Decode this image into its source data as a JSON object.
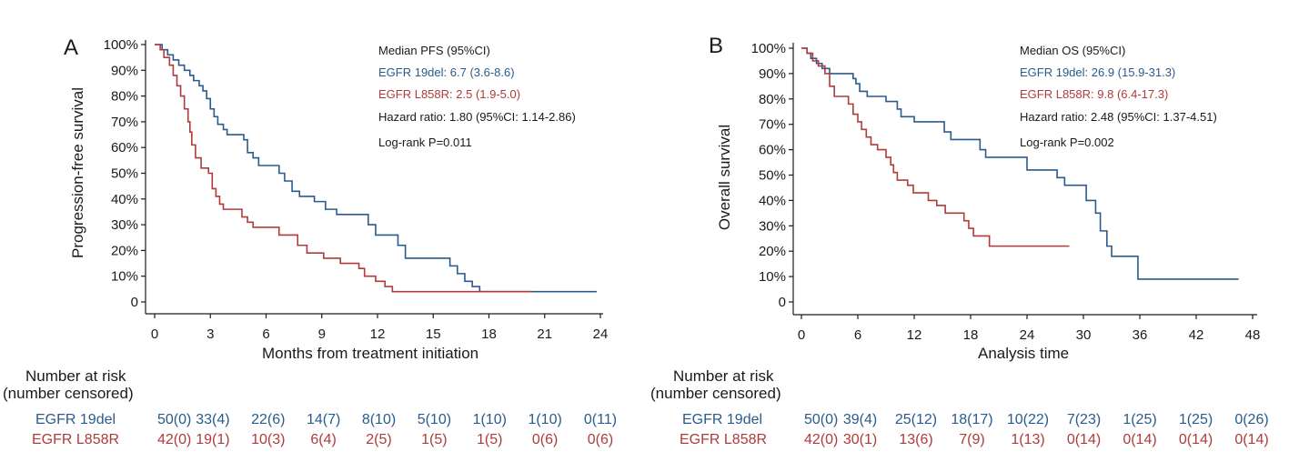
{
  "colors": {
    "egfr19del": "#2a5b8c",
    "l858r": "#b03b3b",
    "text": "#1a1a1a"
  },
  "chart_data": [
    {
      "panel": "A",
      "type": "line",
      "subtype": "kaplan-meier",
      "xlabel": "Months from treatment initiation",
      "ylabel": "Progression-free survival",
      "xlim": [
        0,
        24
      ],
      "ylim": [
        0,
        100
      ],
      "xticks": [
        0,
        3,
        6,
        9,
        12,
        15,
        18,
        21,
        24
      ],
      "yticks": [
        0,
        10,
        20,
        30,
        40,
        50,
        60,
        70,
        80,
        90,
        100
      ],
      "ytick_labels": [
        "0",
        "10%",
        "20%",
        "30%",
        "40%",
        "50%",
        "60%",
        "70%",
        "80%",
        "90%",
        "100%"
      ],
      "annotations": [
        "Median PFS (95%CI)",
        "EGFR 19del: 6.7 (3.6-8.6)",
        "EGFR L858R: 2.5 (1.9-5.0)",
        "Hazard ratio: 1.80 (95%CI: 1.14-2.86)",
        "Log-rank P=0.011"
      ],
      "series": [
        {
          "name": "EGFR 19del",
          "points": [
            [
              0,
              100
            ],
            [
              0.4,
              98
            ],
            [
              0.7,
              96
            ],
            [
              1.0,
              94
            ],
            [
              1.3,
              92
            ],
            [
              1.6,
              90
            ],
            [
              1.9,
              88
            ],
            [
              2.1,
              86
            ],
            [
              2.4,
              84
            ],
            [
              2.6,
              82
            ],
            [
              2.8,
              79
            ],
            [
              3.0,
              75
            ],
            [
              3.2,
              72
            ],
            [
              3.4,
              69
            ],
            [
              3.7,
              67
            ],
            [
              3.9,
              65
            ],
            [
              4.8,
              63
            ],
            [
              5.0,
              58
            ],
            [
              5.3,
              56
            ],
            [
              5.6,
              53
            ],
            [
              6.7,
              50
            ],
            [
              7.0,
              47
            ],
            [
              7.4,
              43
            ],
            [
              7.8,
              41
            ],
            [
              8.6,
              39
            ],
            [
              9.2,
              36
            ],
            [
              9.8,
              34
            ],
            [
              11.5,
              30
            ],
            [
              11.9,
              26
            ],
            [
              13.1,
              22
            ],
            [
              13.5,
              17
            ],
            [
              15.9,
              14
            ],
            [
              16.3,
              11
            ],
            [
              16.7,
              8
            ],
            [
              17.1,
              6
            ],
            [
              17.5,
              4
            ],
            [
              20.5,
              4
            ],
            [
              23.8,
              4
            ]
          ]
        },
        {
          "name": "EGFR L858R",
          "points": [
            [
              0,
              100
            ],
            [
              0.3,
              98
            ],
            [
              0.5,
              95
            ],
            [
              0.8,
              92
            ],
            [
              1.0,
              88
            ],
            [
              1.2,
              84
            ],
            [
              1.4,
              80
            ],
            [
              1.6,
              75
            ],
            [
              1.8,
              70
            ],
            [
              1.9,
              66
            ],
            [
              2.0,
              61
            ],
            [
              2.2,
              56
            ],
            [
              2.5,
              52
            ],
            [
              2.9,
              50
            ],
            [
              3.1,
              44
            ],
            [
              3.3,
              41
            ],
            [
              3.5,
              38
            ],
            [
              3.7,
              36
            ],
            [
              4.7,
              33
            ],
            [
              5.0,
              31
            ],
            [
              5.3,
              29
            ],
            [
              6.7,
              26
            ],
            [
              7.7,
              22
            ],
            [
              8.2,
              19
            ],
            [
              9.1,
              17
            ],
            [
              10.0,
              15
            ],
            [
              11.0,
              13
            ],
            [
              11.3,
              10
            ],
            [
              11.9,
              8
            ],
            [
              12.4,
              6
            ],
            [
              12.8,
              4
            ],
            [
              20.3,
              4
            ]
          ]
        }
      ],
      "risk_table": {
        "header": [
          "Number at risk",
          "(number censored)"
        ],
        "rows": [
          {
            "label": "EGFR    19del",
            "values": [
              "50(0)",
              "33(4)",
              "22(6)",
              "14(7)",
              "8(10)",
              "5(10)",
              "1(10)",
              "1(10)",
              "0(11)"
            ]
          },
          {
            "label": "EGFR L858R",
            "values": [
              "42(0)",
              "19(1)",
              "10(3)",
              "6(4)",
              "2(5)",
              "1(5)",
              "1(5)",
              "0(6)",
              "0(6)"
            ]
          }
        ]
      }
    },
    {
      "panel": "B",
      "type": "line",
      "subtype": "kaplan-meier",
      "xlabel": "Analysis time",
      "ylabel": "Overall survival",
      "xlim": [
        0,
        48
      ],
      "ylim": [
        0,
        100
      ],
      "xticks": [
        0,
        6,
        12,
        18,
        24,
        30,
        36,
        42,
        48
      ],
      "yticks": [
        0,
        10,
        20,
        30,
        40,
        50,
        60,
        70,
        80,
        90,
        100
      ],
      "ytick_labels": [
        "0",
        "10%",
        "20%",
        "30%",
        "40%",
        "50%",
        "60%",
        "70%",
        "80%",
        "90%",
        "100%"
      ],
      "annotations": [
        "Median OS (95%CI)",
        "EGFR 19del: 26.9 (15.9-31.3)",
        "EGFR L858R: 9.8 (6.4-17.3)",
        "Hazard ratio: 2.48 (95%CI: 1.37-4.51)",
        "Log-rank P=0.002"
      ],
      "series": [
        {
          "name": "EGFR 19del",
          "points": [
            [
              0,
              100
            ],
            [
              0.6,
              98
            ],
            [
              1.0,
              96
            ],
            [
              1.6,
              94
            ],
            [
              2.2,
              92
            ],
            [
              3.0,
              90
            ],
            [
              5.5,
              88
            ],
            [
              5.8,
              86
            ],
            [
              6.2,
              83
            ],
            [
              7.0,
              81
            ],
            [
              9.0,
              79
            ],
            [
              10.2,
              76
            ],
            [
              10.6,
              73
            ],
            [
              12.0,
              71
            ],
            [
              15.2,
              67
            ],
            [
              15.9,
              64
            ],
            [
              19.0,
              60
            ],
            [
              19.6,
              57
            ],
            [
              24.0,
              52
            ],
            [
              27.2,
              49
            ],
            [
              28.0,
              46
            ],
            [
              30.3,
              40
            ],
            [
              31.3,
              35
            ],
            [
              31.8,
              28
            ],
            [
              32.5,
              22
            ],
            [
              33.0,
              18
            ],
            [
              35.8,
              9
            ],
            [
              46.5,
              9
            ]
          ]
        },
        {
          "name": "EGFR L858R",
          "points": [
            [
              0,
              100
            ],
            [
              0.6,
              98
            ],
            [
              1.2,
              95
            ],
            [
              1.8,
              93
            ],
            [
              2.5,
              90
            ],
            [
              3.0,
              85
            ],
            [
              3.5,
              81
            ],
            [
              5.0,
              78
            ],
            [
              5.5,
              74
            ],
            [
              6.0,
              71
            ],
            [
              6.4,
              68
            ],
            [
              6.9,
              65
            ],
            [
              7.4,
              62
            ],
            [
              8.1,
              60
            ],
            [
              9.0,
              57
            ],
            [
              9.5,
              54
            ],
            [
              9.8,
              51
            ],
            [
              10.2,
              48
            ],
            [
              11.3,
              46
            ],
            [
              11.9,
              43
            ],
            [
              13.5,
              40
            ],
            [
              14.4,
              38
            ],
            [
              15.3,
              35
            ],
            [
              17.3,
              32
            ],
            [
              17.8,
              29
            ],
            [
              18.3,
              26
            ],
            [
              20.0,
              22
            ],
            [
              28.5,
              22
            ]
          ]
        }
      ],
      "risk_table": {
        "header": [
          "Number at risk",
          "(number censored)"
        ],
        "rows": [
          {
            "label": "EGFR    19del",
            "values": [
              "50(0)",
              "39(4)",
              "25(12)",
              "18(17)",
              "10(22)",
              "7(23)",
              "1(25)",
              "1(25)",
              "0(26)"
            ]
          },
          {
            "label": "EGFR L858R",
            "values": [
              "42(0)",
              "30(1)",
              "13(6)",
              "7(9)",
              "1(13)",
              "0(14)",
              "0(14)",
              "0(14)",
              "0(14)"
            ]
          }
        ]
      }
    }
  ]
}
